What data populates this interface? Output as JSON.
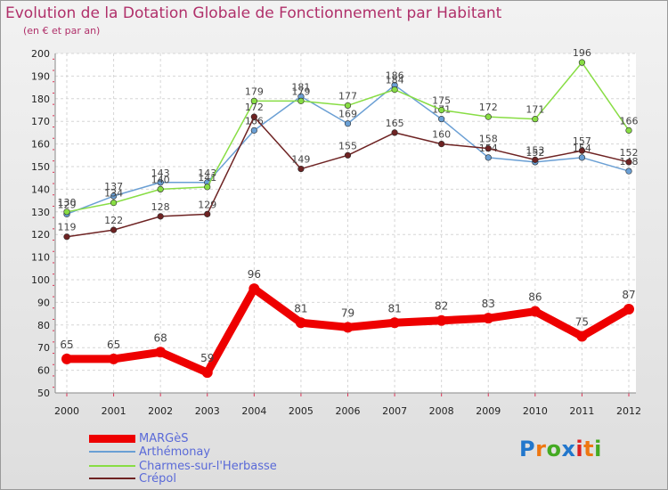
{
  "chart_data": {
    "type": "line",
    "title": "Evolution de la Dotation Globale de Fonctionnement par Habitant",
    "subtitle": "(en € et par an)",
    "xlabel": "",
    "ylabel": "",
    "ylim": [
      50,
      200
    ],
    "yticks": [
      50,
      60,
      70,
      80,
      90,
      100,
      110,
      120,
      130,
      140,
      150,
      160,
      170,
      180,
      190,
      200
    ],
    "categories": [
      "2000",
      "2001",
      "2002",
      "2003",
      "2004",
      "2005",
      "2006",
      "2007",
      "2008",
      "2009",
      "2010",
      "2011",
      "2012"
    ],
    "series": [
      {
        "name": "MARGèS",
        "color": "#ee0000",
        "values": [
          65,
          65,
          68,
          59,
          96,
          81,
          79,
          81,
          82,
          83,
          86,
          75,
          87
        ]
      },
      {
        "name": "Arthémonay",
        "color": "#6a9fd4",
        "values": [
          129,
          137,
          143,
          143,
          166,
          181,
          169,
          186,
          171,
          154,
          152,
          154,
          148
        ]
      },
      {
        "name": "Charmes-sur-l'Herbasse",
        "color": "#88dd44",
        "values": [
          130,
          134,
          140,
          141,
          179,
          179,
          177,
          184,
          175,
          172,
          171,
          196,
          166
        ]
      },
      {
        "name": "Crépol",
        "color": "#6e2323",
        "values": [
          119,
          122,
          128,
          129,
          172,
          149,
          155,
          165,
          160,
          158,
          153,
          157,
          152
        ]
      }
    ],
    "grid": true,
    "legend": "bottom-left"
  },
  "logo": {
    "letters": [
      "P",
      "r",
      "o",
      "x",
      "i",
      "t",
      "i"
    ],
    "colors": [
      "#2277cc",
      "#ee7711",
      "#44aa22",
      "#2277cc",
      "#dd2222",
      "#ee7711",
      "#44aa22"
    ]
  }
}
